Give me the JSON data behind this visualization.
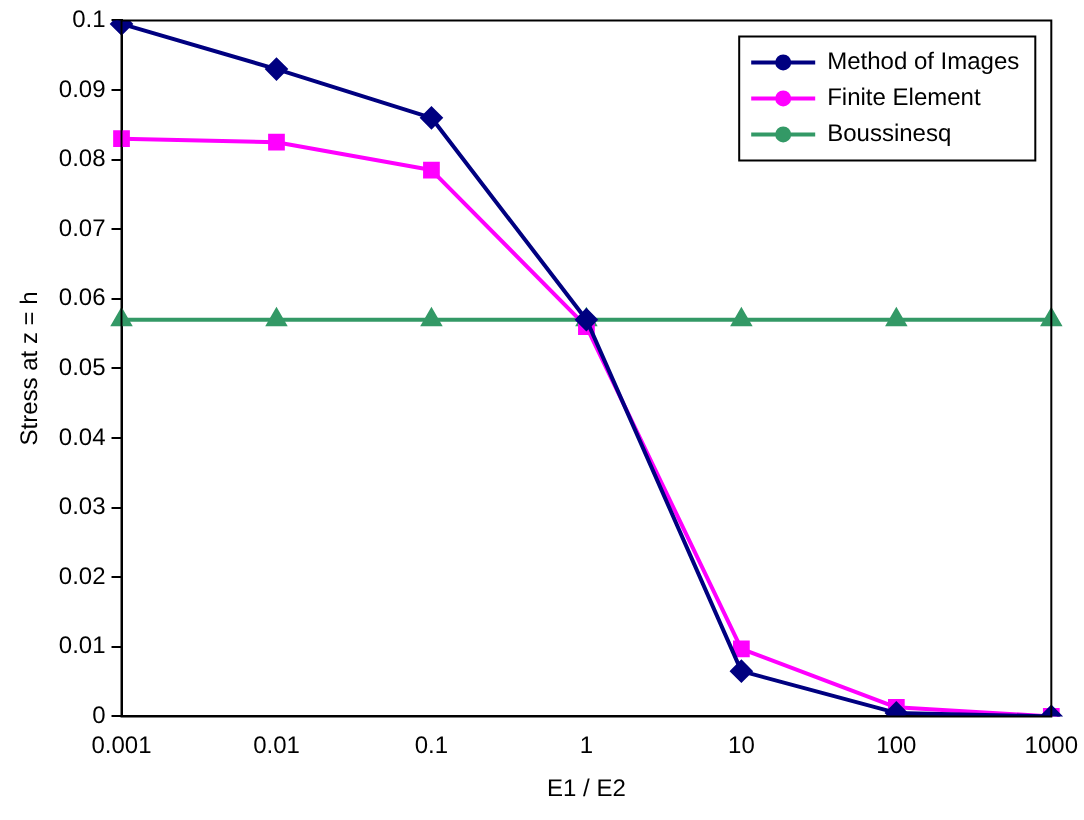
{
  "chart_data": {
    "type": "line",
    "xlabel": "E1 / E2",
    "ylabel": "Stress at z = h",
    "categories": [
      "0.001",
      "0.01",
      "0.1",
      "1",
      "10",
      "100",
      "1000"
    ],
    "series": [
      {
        "name": "Method of Images",
        "color": "#000080",
        "marker": "diamond",
        "values": [
          0.0995,
          0.093,
          0.086,
          0.057,
          0.0065,
          0.0005,
          0
        ]
      },
      {
        "name": "Finite Element",
        "color": "#ff00ff",
        "marker": "square",
        "values": [
          0.083,
          0.0825,
          0.0785,
          0.056,
          0.0097,
          0.0013,
          0
        ]
      },
      {
        "name": "Boussinesq",
        "color": "#339966",
        "marker": "triangle",
        "values": [
          0.057,
          0.057,
          0.057,
          0.057,
          0.057,
          0.057,
          0.057
        ]
      }
    ],
    "ylim": [
      0,
      0.1
    ],
    "yticks": [
      0,
      0.01,
      0.02,
      0.03,
      0.04,
      0.05,
      0.06,
      0.07,
      0.08,
      0.09,
      0.1
    ],
    "grid": false,
    "legend": "top right",
    "line_style": "solid"
  }
}
